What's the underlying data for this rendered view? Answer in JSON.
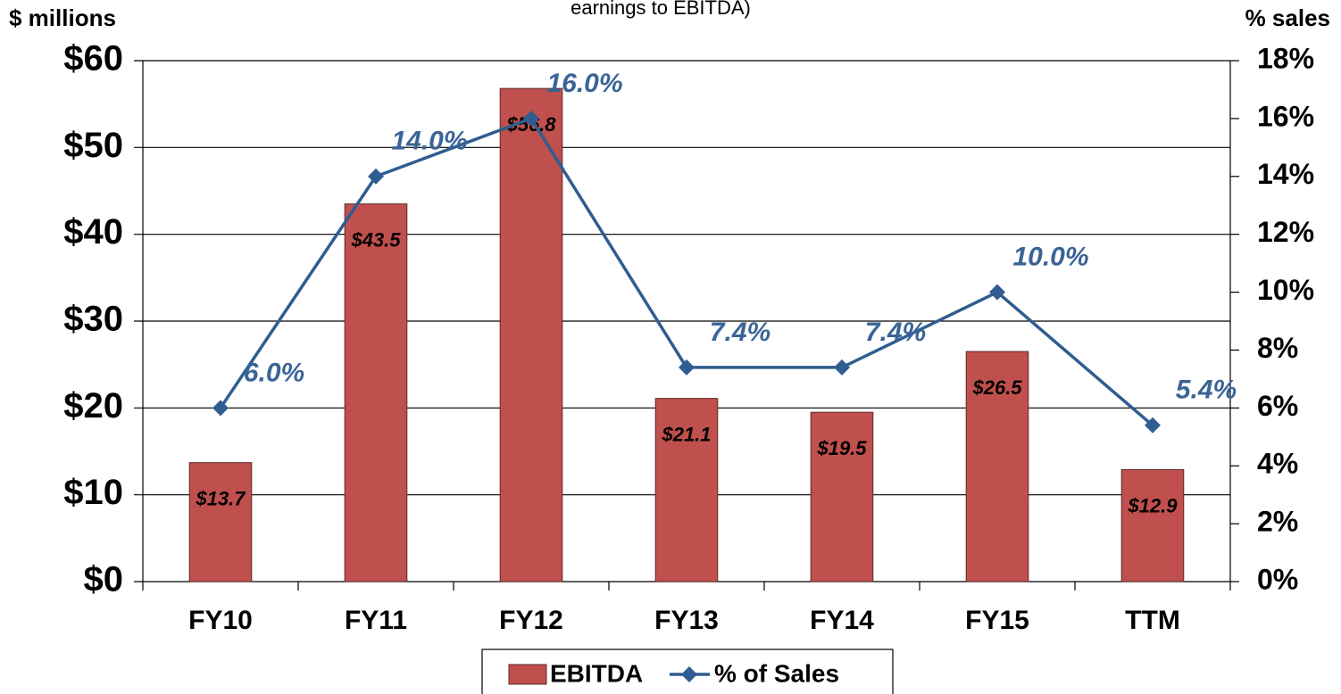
{
  "chart_data": {
    "type": "bar_line",
    "subtitle": "earnings to EBITDA)",
    "ylabel": "$ millions",
    "y2label": "% sales",
    "categories": [
      "FY10",
      "FY11",
      "FY12",
      "FY13",
      "FY14",
      "FY15",
      "TTM"
    ],
    "series": [
      {
        "name": "EBITDA",
        "type": "bar",
        "color": "#c0504d",
        "values": [
          13.7,
          43.5,
          56.8,
          21.1,
          19.5,
          26.5,
          12.9
        ],
        "value_labels": [
          "$13.7",
          "$43.5",
          "$56.8",
          "$21.1",
          "$19.5",
          "$26.5",
          "$12.9"
        ]
      },
      {
        "name": "% of Sales",
        "type": "line",
        "axis": "y2",
        "color": "#2f5d8f",
        "values": [
          6.0,
          14.0,
          16.0,
          7.4,
          7.4,
          10.0,
          5.4
        ],
        "value_labels": [
          "6.0%",
          "14.0%",
          "16.0%",
          "7.4%",
          "7.4%",
          "10.0%",
          "5.4%"
        ]
      }
    ],
    "ylim": [
      0,
      60
    ],
    "yticks": [
      {
        "value": 0,
        "label": "$0"
      },
      {
        "value": 10,
        "label": "$10"
      },
      {
        "value": 20,
        "label": "$20"
      },
      {
        "value": 30,
        "label": "$30"
      },
      {
        "value": 40,
        "label": "$40"
      },
      {
        "value": 50,
        "label": "$50"
      },
      {
        "value": 60,
        "label": "$60"
      }
    ],
    "y2lim": [
      0,
      18
    ],
    "y2ticks": [
      {
        "value": 0,
        "label": "0%"
      },
      {
        "value": 2,
        "label": "2%"
      },
      {
        "value": 4,
        "label": "4%"
      },
      {
        "value": 6,
        "label": "6%"
      },
      {
        "value": 8,
        "label": "8%"
      },
      {
        "value": 10,
        "label": "10%"
      },
      {
        "value": 12,
        "label": "12%"
      },
      {
        "value": 14,
        "label": "14%"
      },
      {
        "value": 16,
        "label": "16%"
      },
      {
        "value": 18,
        "label": "18%"
      }
    ],
    "grid": true,
    "legend": "bottom"
  }
}
